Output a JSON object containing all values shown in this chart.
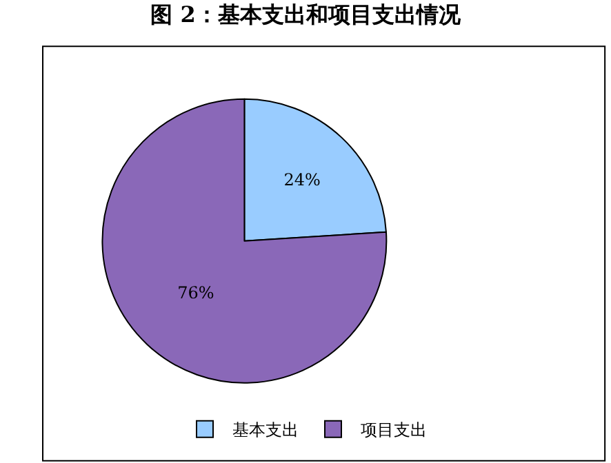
{
  "chart_data": {
    "type": "pie",
    "title": "图 2：基本支出和项目支出情况",
    "categories": [
      "基本支出",
      "项目支出"
    ],
    "values": [
      24,
      76
    ],
    "colors": [
      "#99ccff",
      "#8a68b8"
    ],
    "value_labels": [
      "24%",
      "76%"
    ],
    "legend": "bottom"
  }
}
